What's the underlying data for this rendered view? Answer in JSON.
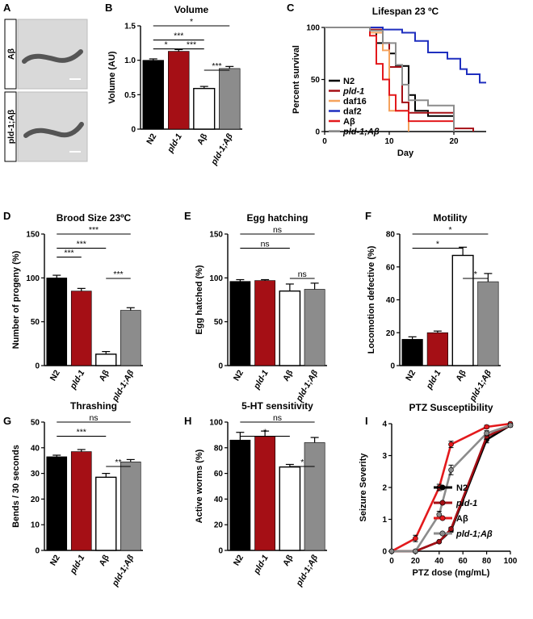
{
  "panels": {
    "A": {
      "letter": "A",
      "labels": [
        "Aβ",
        "pld-1;Aβ"
      ]
    },
    "G_panel_letter": "G"
  },
  "colors": {
    "n2": "#000000",
    "pld1": "#a50f15",
    "abeta": "#ffffff",
    "pld1abeta": "#8c8c8c",
    "daf16": "#f5a25d",
    "daf2": "#1f2fbf",
    "abeta_line": "#e3191c",
    "pld1abeta_line": "#8c8c8c"
  },
  "chart_data": [
    {
      "id": "B",
      "letter": "B",
      "type": "bar",
      "title": "Volume",
      "ylabel": "Volume (AU)",
      "ylim": [
        0,
        1.5
      ],
      "yticks": [
        0,
        0.5,
        1.0,
        1.5
      ],
      "ytick_labels": [
        "0",
        "0.5",
        "1.0",
        "1.5"
      ],
      "categories": [
        "N2",
        "pld-1",
        "Aβ",
        "pld-1;Aβ"
      ],
      "values": [
        1.0,
        1.13,
        0.59,
        0.88
      ],
      "errors": [
        0.02,
        0.025,
        0.03,
        0.03
      ],
      "significance": [
        {
          "from": 0,
          "to": 1,
          "label": "*"
        },
        {
          "from": 0,
          "to": 2,
          "label": "***"
        },
        {
          "from": 0,
          "to": 3,
          "label": "*"
        },
        {
          "from": 1,
          "to": 2,
          "label": "***"
        },
        {
          "from": 2,
          "to": 3,
          "label": "***"
        }
      ]
    },
    {
      "id": "C",
      "letter": "C",
      "type": "line",
      "title": "Lifespan 23 ºC",
      "xlabel": "Day",
      "ylabel": "Percent survival",
      "xlim": [
        0,
        25
      ],
      "ylim": [
        0,
        100
      ],
      "xticks": [
        0,
        10,
        20
      ],
      "yticks": [
        0,
        50,
        100
      ],
      "series": [
        {
          "name": "N2",
          "color": "#000000",
          "steps": [
            [
              0,
              100
            ],
            [
              7,
              100
            ],
            [
              7,
              95
            ],
            [
              8,
              95
            ],
            [
              8,
              85
            ],
            [
              10,
              85
            ],
            [
              10,
              75
            ],
            [
              11,
              75
            ],
            [
              11,
              63
            ],
            [
              13,
              63
            ],
            [
              13,
              35
            ],
            [
              14,
              35
            ],
            [
              14,
              20
            ],
            [
              16,
              20
            ],
            [
              16,
              15
            ],
            [
              20,
              15
            ],
            [
              20,
              0
            ]
          ]
        },
        {
          "name": "pld-1",
          "color": "#a50f15",
          "steps": [
            [
              0,
              100
            ],
            [
              7,
              100
            ],
            [
              7,
              98
            ],
            [
              9,
              98
            ],
            [
              9,
              85
            ],
            [
              10,
              85
            ],
            [
              10,
              62
            ],
            [
              12,
              62
            ],
            [
              12,
              28
            ],
            [
              13,
              28
            ],
            [
              13,
              18
            ],
            [
              20,
              18
            ],
            [
              20,
              3
            ],
            [
              23,
              3
            ],
            [
              23,
              0
            ]
          ]
        },
        {
          "name": "daf16",
          "color": "#f5a25d",
          "steps": [
            [
              0,
              100
            ],
            [
              7,
              100
            ],
            [
              7,
              95
            ],
            [
              9,
              95
            ],
            [
              9,
              78
            ],
            [
              10,
              78
            ],
            [
              10,
              20
            ],
            [
              13,
              20
            ],
            [
              13,
              0
            ]
          ]
        },
        {
          "name": "daf2",
          "color": "#1f2fbf",
          "steps": [
            [
              0,
              100
            ],
            [
              9,
              100
            ],
            [
              9,
              98
            ],
            [
              12,
              98
            ],
            [
              12,
              95
            ],
            [
              14,
              95
            ],
            [
              14,
              87
            ],
            [
              16,
              87
            ],
            [
              16,
              76
            ],
            [
              19,
              76
            ],
            [
              19,
              70
            ],
            [
              21,
              70
            ],
            [
              21,
              60
            ],
            [
              22,
              60
            ],
            [
              22,
              55
            ],
            [
              24,
              55
            ],
            [
              24,
              47
            ],
            [
              25,
              47
            ]
          ]
        },
        {
          "name": "Aβ",
          "color": "#e3191c",
          "steps": [
            [
              0,
              100
            ],
            [
              7,
              100
            ],
            [
              7,
              92
            ],
            [
              8,
              92
            ],
            [
              8,
              65
            ],
            [
              9,
              65
            ],
            [
              9,
              50
            ],
            [
              10,
              50
            ],
            [
              10,
              35
            ],
            [
              11,
              35
            ],
            [
              11,
              20
            ],
            [
              13,
              20
            ],
            [
              13,
              10
            ],
            [
              20,
              10
            ],
            [
              20,
              0
            ]
          ]
        },
        {
          "name": "pld-1;Aβ",
          "color": "#8c8c8c",
          "steps": [
            [
              0,
              100
            ],
            [
              7,
              100
            ],
            [
              7,
              97
            ],
            [
              9,
              97
            ],
            [
              9,
              85
            ],
            [
              11,
              85
            ],
            [
              11,
              64
            ],
            [
              12,
              64
            ],
            [
              12,
              45
            ],
            [
              13,
              45
            ],
            [
              13,
              30
            ],
            [
              16,
              30
            ],
            [
              16,
              25
            ],
            [
              20,
              25
            ],
            [
              20,
              0
            ]
          ]
        }
      ]
    },
    {
      "id": "D",
      "letter": "D",
      "type": "bar",
      "title": "Brood Size  23ºC",
      "ylabel": "Number of progeny (%)",
      "ylim": [
        0,
        150
      ],
      "yticks": [
        0,
        50,
        100,
        150
      ],
      "ytick_labels": [
        "0",
        "50",
        "100",
        "150"
      ],
      "categories": [
        "N2",
        "pld-1",
        "Aβ",
        "pld-1;Aβ"
      ],
      "values": [
        100,
        85,
        13,
        63
      ],
      "errors": [
        3,
        3,
        3,
        3
      ],
      "significance": [
        {
          "from": 0,
          "to": 1,
          "label": "***"
        },
        {
          "from": 0,
          "to": 2,
          "label": "***"
        },
        {
          "from": 0,
          "to": 3,
          "label": "***"
        },
        {
          "from": 2,
          "to": 3,
          "label": "***"
        }
      ]
    },
    {
      "id": "E",
      "letter": "E",
      "type": "bar",
      "title": "Egg hatching",
      "ylabel": "Egg hatched (%)",
      "ylim": [
        0,
        150
      ],
      "yticks": [
        0,
        50,
        100,
        150
      ],
      "ytick_labels": [
        "0",
        "50",
        "100",
        "150"
      ],
      "categories": [
        "N2",
        "pld-1",
        "Aβ",
        "pld-1;Aβ"
      ],
      "values": [
        96,
        97,
        85,
        87
      ],
      "errors": [
        2,
        1,
        8,
        7
      ],
      "significance": [
        {
          "from": 0,
          "to": 3,
          "label": "ns"
        },
        {
          "from": 0,
          "to": 2,
          "label": "ns"
        },
        {
          "from": 2,
          "to": 3,
          "label": "ns"
        }
      ]
    },
    {
      "id": "F",
      "letter": "F",
      "type": "bar",
      "title": "Motility",
      "ylabel": "Locomotion defective (%)",
      "ylim": [
        0,
        80
      ],
      "yticks": [
        0,
        20,
        40,
        60,
        80
      ],
      "ytick_labels": [
        "0",
        "20",
        "40",
        "60",
        "80"
      ],
      "categories": [
        "N2",
        "pld-1",
        "Aβ",
        "pld-1;Aβ"
      ],
      "values": [
        16,
        20,
        67,
        51
      ],
      "errors": [
        1.5,
        1,
        5,
        5
      ],
      "significance": [
        {
          "from": 0,
          "to": 3,
          "label": "*"
        },
        {
          "from": 0,
          "to": 2,
          "label": "*"
        },
        {
          "from": 2,
          "to": 3,
          "label": "*"
        }
      ]
    },
    {
      "id": "G",
      "letter": "G",
      "type": "bar",
      "title": "Thrashing",
      "ylabel": "Bends / 30 seconds",
      "ylim": [
        0,
        50
      ],
      "yticks": [
        0,
        10,
        20,
        30,
        40,
        50
      ],
      "ytick_labels": [
        "0",
        "10",
        "20",
        "30",
        "40",
        "50"
      ],
      "categories": [
        "N2",
        "pld-1",
        "Aβ",
        "pld-1;Aβ"
      ],
      "values": [
        36.5,
        38.5,
        28.5,
        34.5
      ],
      "errors": [
        0.6,
        0.8,
        1.5,
        0.9
      ],
      "significance": [
        {
          "from": 0,
          "to": 3,
          "label": "ns"
        },
        {
          "from": 0,
          "to": 2,
          "label": "***"
        },
        {
          "from": 2,
          "to": 3,
          "label": "**"
        }
      ]
    },
    {
      "id": "H",
      "letter": "H",
      "type": "bar",
      "title": "5-HT sensitivity",
      "ylabel": "Active worms (%)",
      "ylim": [
        0,
        100
      ],
      "yticks": [
        0,
        20,
        40,
        60,
        80,
        100
      ],
      "ytick_labels": [
        "0",
        "20",
        "40",
        "60",
        "80",
        "100"
      ],
      "categories": [
        "N2",
        "pld-1",
        "Aβ",
        "pld-1;Aβ"
      ],
      "values": [
        86,
        89,
        65,
        84
      ],
      "errors": [
        6,
        4,
        2,
        4
      ],
      "significance": [
        {
          "from": 0,
          "to": 3,
          "label": "ns"
        },
        {
          "from": 0,
          "to": 2,
          "label": "*"
        },
        {
          "from": 2,
          "to": 3,
          "label": "*"
        }
      ]
    },
    {
      "id": "I",
      "letter": "I",
      "type": "line",
      "title": "PTZ Susceptibility",
      "xlabel": "PTZ dose (mg/mL)",
      "ylabel": "Seizure Severity",
      "xlim": [
        0,
        100
      ],
      "ylim": [
        0,
        4
      ],
      "xticks": [
        0,
        20,
        40,
        60,
        80,
        100
      ],
      "yticks": [
        0,
        1,
        2,
        3,
        4
      ],
      "x": [
        0,
        20,
        40,
        50,
        80,
        100
      ],
      "series": [
        {
          "name": "N2",
          "color": "#000000",
          "values": [
            0,
            0,
            0.3,
            0.65,
            3.5,
            3.95
          ],
          "errors": [
            0,
            0,
            0.03,
            0.05,
            0.1,
            0.05
          ]
        },
        {
          "name": "pld-1",
          "color": "#a50f15",
          "values": [
            0,
            0,
            0.3,
            0.7,
            3.6,
            3.95
          ],
          "errors": [
            0,
            0,
            0.03,
            0.05,
            0.1,
            0.05
          ]
        },
        {
          "name": "Aβ",
          "color": "#e3191c",
          "values": [
            0,
            0.4,
            2.0,
            3.35,
            3.9,
            4.0
          ],
          "errors": [
            0,
            0.1,
            0.1,
            0.1,
            0.05,
            0.03
          ]
        },
        {
          "name": "pld-1;Aβ",
          "color": "#8c8c8c",
          "values": [
            0,
            0,
            1.15,
            2.55,
            3.7,
            3.95
          ],
          "errors": [
            0,
            0,
            0.1,
            0.15,
            0.08,
            0.05
          ]
        }
      ]
    }
  ]
}
